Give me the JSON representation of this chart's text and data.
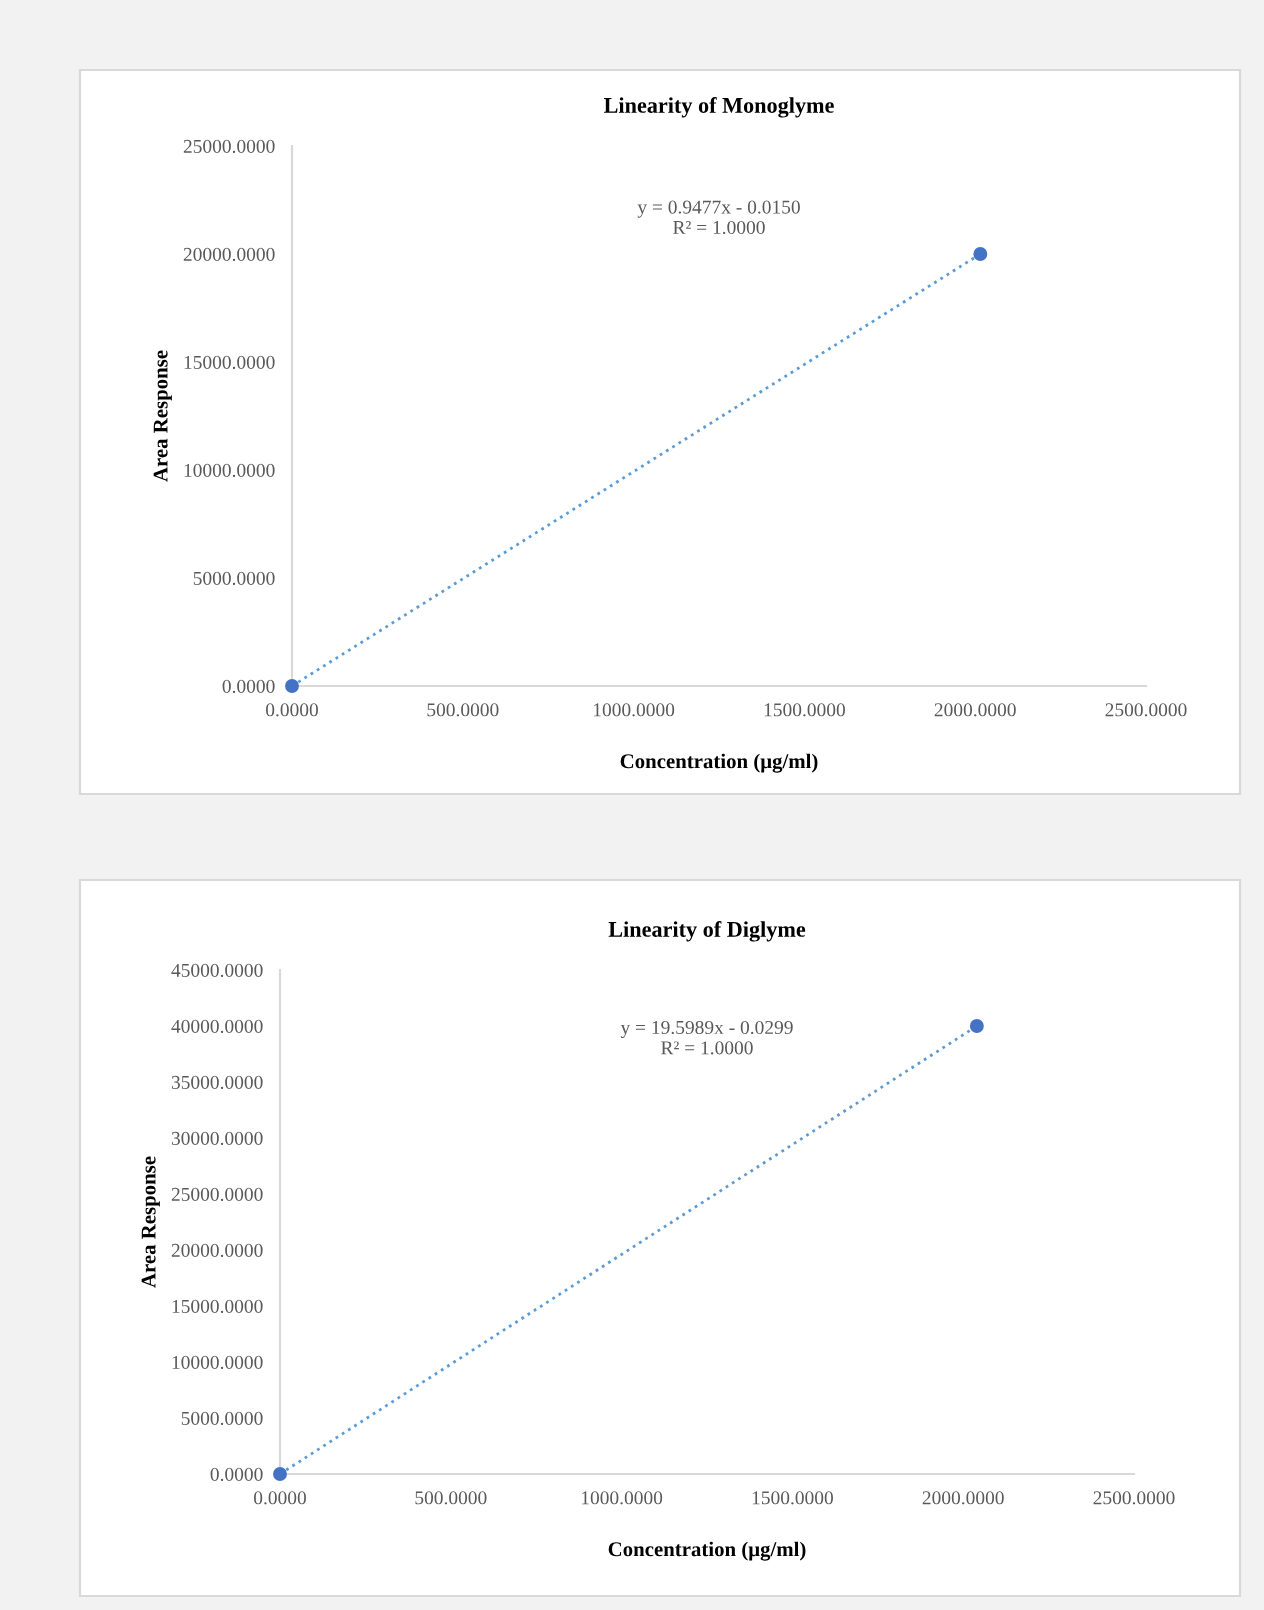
{
  "chart_data": [
    {
      "type": "scatter",
      "title": "Linearity of Monoglyme",
      "xlabel": "Concentration (μg/ml)",
      "ylabel": "Area Response",
      "annotations": [
        "y = 0.9477x - 0.0150",
        "R² = 1.0000"
      ],
      "series": [
        {
          "type": "scatter",
          "color": "#4472c4",
          "x": [
            0,
            2015
          ],
          "values": [
            0,
            20000
          ],
          "marker": "circle"
        },
        {
          "type": "line",
          "color": "#5b9bd5",
          "x": [
            0,
            2015
          ],
          "values": [
            0,
            20000
          ],
          "line_style": "dotted",
          "marker": "none"
        }
      ],
      "xlim": [
        0,
        2500
      ],
      "ylim": [
        0,
        25000
      ],
      "xticks": [
        {
          "value": 0,
          "label": "0.0000"
        },
        {
          "value": 500,
          "label": "500.0000"
        },
        {
          "value": 1000,
          "label": "1000.0000"
        },
        {
          "value": 1500,
          "label": "1500.0000"
        },
        {
          "value": 2000,
          "label": "2000.0000"
        },
        {
          "value": 2500,
          "label": "2500.0000"
        }
      ],
      "yticks": [
        {
          "value": 0,
          "label": "0.0000"
        },
        {
          "value": 5000,
          "label": "5000.0000"
        },
        {
          "value": 10000,
          "label": "10000.0000"
        },
        {
          "value": 15000,
          "label": "15000.0000"
        },
        {
          "value": 20000,
          "label": "20000.0000"
        },
        {
          "value": 25000,
          "label": "25000.0000"
        }
      ],
      "grid": false,
      "legend": false
    },
    {
      "type": "scatter",
      "title": "Linearity of Diglyme",
      "xlabel": "Concentration (μg/ml)",
      "ylabel": "Area Response",
      "annotations": [
        "y = 19.5989x - 0.0299",
        "R² = 1.0000"
      ],
      "series": [
        {
          "type": "scatter",
          "color": "#4472c4",
          "x": [
            0,
            2040
          ],
          "values": [
            0,
            40000
          ],
          "marker": "circle"
        },
        {
          "type": "line",
          "color": "#5b9bd5",
          "x": [
            0,
            2040
          ],
          "values": [
            0,
            40000
          ],
          "line_style": "dotted",
          "marker": "none"
        }
      ],
      "xlim": [
        0,
        2500
      ],
      "ylim": [
        0,
        45000
      ],
      "xticks": [
        {
          "value": 0,
          "label": "0.0000"
        },
        {
          "value": 500,
          "label": "500.0000"
        },
        {
          "value": 1000,
          "label": "1000.0000"
        },
        {
          "value": 1500,
          "label": "1500.0000"
        },
        {
          "value": 2000,
          "label": "2000.0000"
        },
        {
          "value": 2500,
          "label": "2500.0000"
        }
      ],
      "yticks": [
        {
          "value": 0,
          "label": "0.0000"
        },
        {
          "value": 5000,
          "label": "5000.0000"
        },
        {
          "value": 10000,
          "label": "10000.0000"
        },
        {
          "value": 15000,
          "label": "15000.0000"
        },
        {
          "value": 20000,
          "label": "20000.0000"
        },
        {
          "value": 25000,
          "label": "25000.0000"
        },
        {
          "value": 30000,
          "label": "30000.0000"
        },
        {
          "value": 35000,
          "label": "35000.0000"
        },
        {
          "value": 40000,
          "label": "40000.0000"
        },
        {
          "value": 45000,
          "label": "45000.0000"
        }
      ],
      "grid": false,
      "legend": false
    }
  ]
}
